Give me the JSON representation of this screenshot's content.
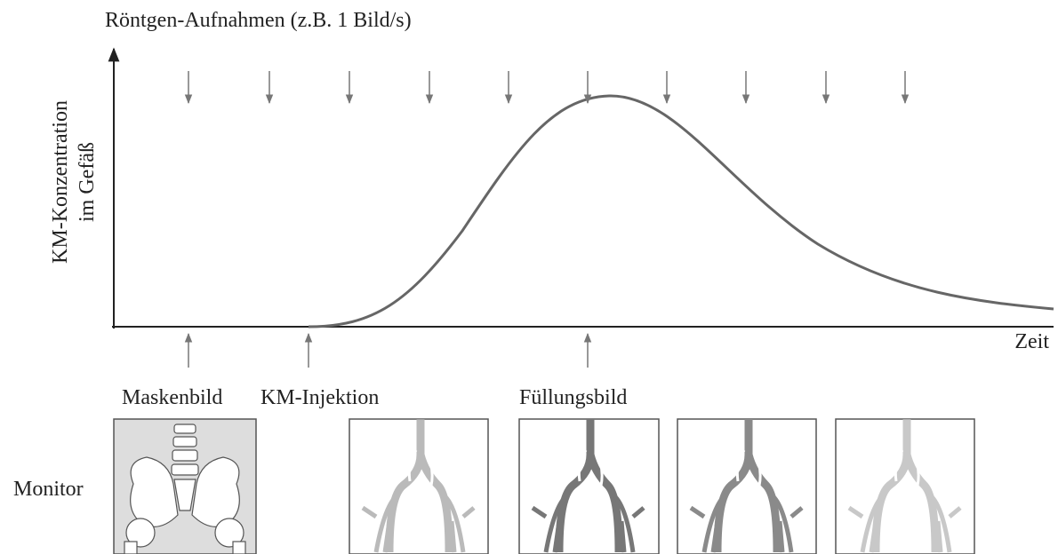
{
  "header": {
    "title": "Röntgen-Aufnahmen (z.B. 1 Bild/s)"
  },
  "axes": {
    "y_label": [
      "KM-Konzentration",
      "im Gefäß"
    ],
    "x_label": "Zeit"
  },
  "markers": [
    "Maskenbild",
    "KM-Injektion",
    "Füllungsbild"
  ],
  "monitor_label": "Monitor"
}
